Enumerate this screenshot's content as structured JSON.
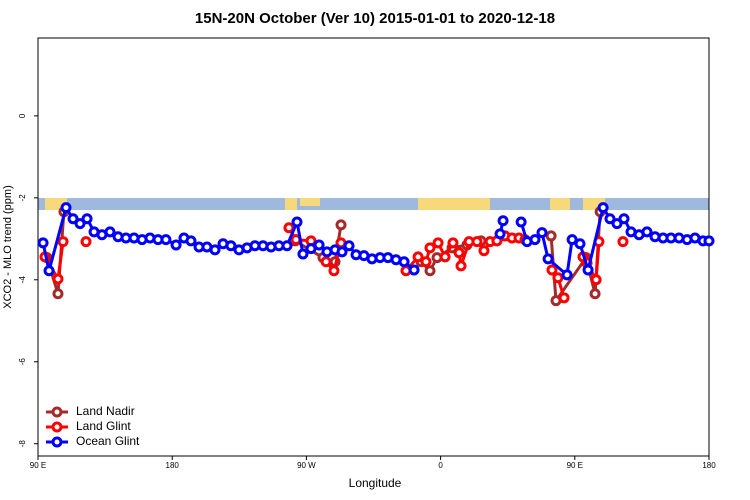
{
  "chart_data": {
    "type": "line",
    "title": "15N-20N October (Ver 10)   2015-01-01 to 2020-12-18",
    "x_label": "Longitude",
    "y_label": "XCO2 - MLO trend (ppm)",
    "xlim": [
      90,
      540
    ],
    "xticks": [
      {
        "value": 90,
        "label": "90 E"
      },
      180,
      {
        "value": 270,
        "label": "90 W"
      },
      {
        "value": 360,
        "label": "0"
      },
      {
        "value": 450,
        "label": "90 E"
      },
      {
        "value": 540,
        "label": "180"
      }
    ],
    "ylim": [
      -8.3,
      1.9
    ],
    "yticks": [
      0,
      -2,
      -4,
      -6,
      -8
    ],
    "legend": "bottom-left",
    "series": [
      {
        "name": "Land Nadir",
        "color": "#a52a2a",
        "x": [
          96.0,
          103.4,
          107.4,
          null,
          262.4,
          281.1,
          289.2,
          293.2,
          null,
          346.9,
          352.9,
          357.6,
          367.7,
          377.7,
          387.1,
          null,
          434.1,
          437.4,
          457.5,
          463.6,
          467.0
        ],
        "values": [
          -3.46,
          -4.34,
          -2.34,
          null,
          -3.05,
          -3.46,
          -3.56,
          -2.66,
          null,
          -3.56,
          -3.78,
          -3.46,
          -3.22,
          -3.15,
          -3.05,
          null,
          -2.93,
          -4.51,
          -3.46,
          -4.34,
          -2.34
        ]
      },
      {
        "name": "Land Glint",
        "color": "#ff0000",
        "x": [
          94.7,
          103.4,
          106.8,
          null,
          122.2,
          null,
          258.3,
          263.0,
          273.1,
          null,
          283.2,
          288.5,
          293.2,
          null,
          336.8,
          344.9,
          350.2,
          352.9,
          358.3,
          363.0,
          368.3,
          372.4,
          373.7,
          379.1,
          384.4,
          389.1,
          393.2,
          397.8,
          403.2,
          407.9,
          412.6,
          416.6,
          null,
          434.7,
          438.7,
          442.8,
          null,
          455.5,
          458.2,
          464.3,
          466.2,
          null,
          482.3
        ],
        "values": [
          -3.44,
          -3.98,
          -3.07,
          null,
          -3.07,
          null,
          -2.73,
          -3.02,
          -3.05,
          null,
          -3.56,
          -3.78,
          -3.1,
          null,
          -3.78,
          -3.44,
          -3.56,
          -3.22,
          -3.1,
          -3.44,
          -3.1,
          -3.34,
          -3.66,
          -3.07,
          -3.07,
          -3.29,
          -3.07,
          -3.05,
          -2.93,
          -2.98,
          -2.98,
          -3.02,
          null,
          -3.76,
          -3.95,
          -4.44,
          null,
          -3.44,
          -3.59,
          -4.0,
          -3.07,
          null,
          -3.07
        ]
      },
      {
        "name": "Ocean Glint",
        "color": "#0000ff",
        "x": [
          93.4,
          97.4,
          108.8,
          113.5,
          118.2,
          122.9,
          127.6,
          132.9,
          138.3,
          143.7,
          149.0,
          154.4,
          159.8,
          165.1,
          170.5,
          175.8,
          182.6,
          187.9,
          192.6,
          198.0,
          203.3,
          208.7,
          214.1,
          219.4,
          224.8,
          230.2,
          235.5,
          240.9,
          246.3,
          251.6,
          257.0,
          263.7,
          267.7,
          273.1,
          278.5,
          283.8,
          289.2,
          293.9,
          298.6,
          303.3,
          308.6,
          314.0,
          319.4,
          324.7,
          330.1,
          335.5,
          342.2,
          null,
          399.9,
          401.9,
          null,
          414.0,
          418.0,
          423.3,
          428.0,
          432.1,
          444.8,
          448.2,
          453.5,
          458.9,
          469.0,
          473.6,
          478.3,
          483.0,
          487.7,
          493.1,
          498.4,
          503.8,
          509.2,
          514.5,
          519.9,
          525.3,
          530.6,
          536.0,
          540.0
        ],
        "values": [
          -3.1,
          -3.78,
          -2.24,
          -2.51,
          -2.63,
          -2.51,
          -2.83,
          -2.9,
          -2.83,
          -2.95,
          -2.98,
          -2.98,
          -3.02,
          -2.98,
          -3.02,
          -3.02,
          -3.15,
          -2.98,
          -3.05,
          -3.2,
          -3.2,
          -3.27,
          -3.12,
          -3.17,
          -3.27,
          -3.22,
          -3.17,
          -3.17,
          -3.2,
          -3.17,
          -3.17,
          -2.59,
          -3.37,
          -3.24,
          -3.15,
          -3.32,
          -3.27,
          -3.32,
          -3.17,
          -3.39,
          -3.41,
          -3.49,
          -3.46,
          -3.46,
          -3.51,
          -3.56,
          -3.76,
          null,
          -2.88,
          -2.56,
          null,
          -2.59,
          -3.07,
          -3.02,
          -2.85,
          -3.49,
          -3.88,
          -3.02,
          -3.12,
          -3.76,
          -2.24,
          -2.51,
          -2.63,
          -2.51,
          -2.83,
          -2.9,
          -2.83,
          -2.95,
          -2.98,
          -2.98,
          -2.98,
          -3.02,
          -2.98,
          -3.05,
          -3.05
        ]
      }
    ]
  }
}
